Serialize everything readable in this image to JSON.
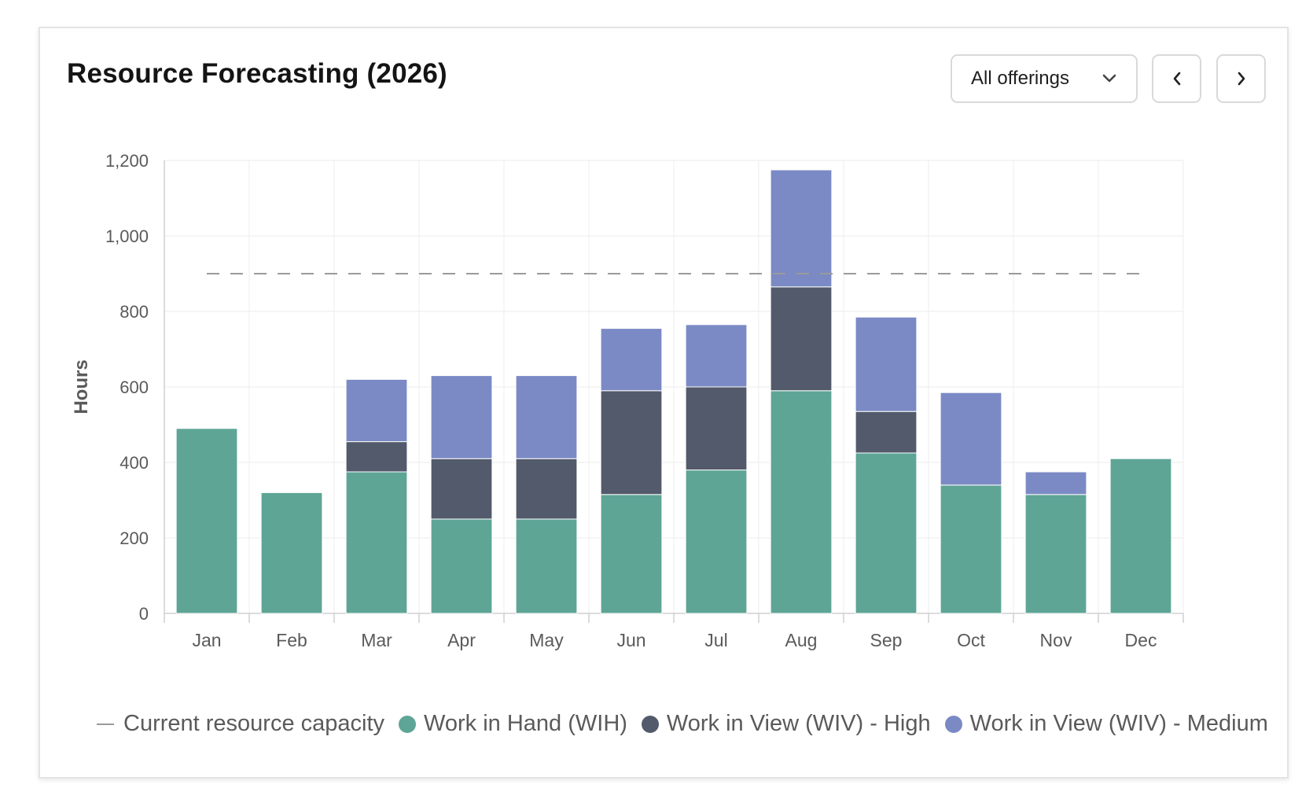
{
  "header": {
    "title": "Resource Forecasting (2026)",
    "filter_label": "All offerings",
    "filter_icon": "chevron-down-icon",
    "prev_icon": "chevron-left-icon",
    "next_icon": "chevron-right-icon"
  },
  "colors": {
    "wih": "#5ea596",
    "wiv_high": "#525a6b",
    "wiv_medium": "#7b8ac4",
    "capacity": "#9a9a9a",
    "grid": "#efefef",
    "axis": "#d0d0d0",
    "tick_text": "#5a5a5a"
  },
  "chart_data": {
    "type": "bar",
    "stacked": true,
    "title": "Resource Forecasting (2026)",
    "xlabel": "",
    "ylabel": "Hours",
    "ylim": [
      0,
      1200
    ],
    "yticks": [
      0,
      200,
      400,
      600,
      800,
      1000,
      1200
    ],
    "ytick_labels": [
      "0",
      "200",
      "400",
      "600",
      "800",
      "1,000",
      "1,200"
    ],
    "grid": true,
    "legend_position": "bottom",
    "categories": [
      "Jan",
      "Feb",
      "Mar",
      "Apr",
      "May",
      "Jun",
      "Jul",
      "Aug",
      "Sep",
      "Oct",
      "Nov",
      "Dec"
    ],
    "series": [
      {
        "name": "Work in Hand (WIH)",
        "values": [
          490,
          320,
          375,
          250,
          250,
          315,
          380,
          590,
          425,
          340,
          315,
          410
        ]
      },
      {
        "name": "Work in View (WIV) - High",
        "values": [
          0,
          0,
          80,
          160,
          160,
          275,
          220,
          275,
          110,
          0,
          0,
          0
        ]
      },
      {
        "name": "Work in View (WIV) - Medium",
        "values": [
          0,
          0,
          165,
          220,
          220,
          165,
          165,
          310,
          250,
          245,
          60,
          0
        ]
      }
    ],
    "reference_line": {
      "name": "Current resource capacity",
      "value": 900
    }
  },
  "legend": [
    {
      "label": "Current resource capacity",
      "kind": "line"
    },
    {
      "label": "Work in Hand (WIH)",
      "kind": "dot"
    },
    {
      "label": "Work in View (WIV) - High",
      "kind": "dot"
    },
    {
      "label": "Work in View (WIV) - Medium",
      "kind": "dot"
    }
  ]
}
